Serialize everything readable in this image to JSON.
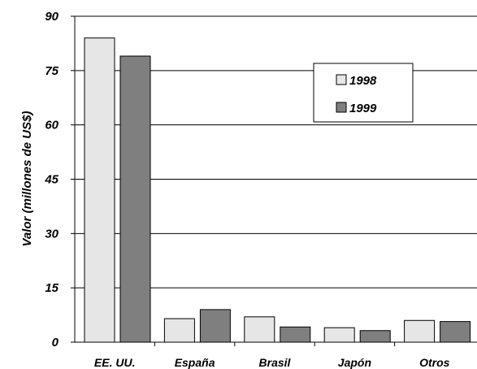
{
  "chart_data": {
    "type": "bar",
    "categories": [
      "EE. UU.",
      "España",
      "Brasil",
      "Japón",
      "Otros"
    ],
    "series": [
      {
        "name": "1998",
        "values": [
          84,
          6.5,
          7,
          4,
          6
        ],
        "color": "#e6e6e6"
      },
      {
        "name": "1999",
        "values": [
          79,
          9,
          4.2,
          3.2,
          5.7
        ],
        "color": "#7f7f7f"
      }
    ],
    "ylabel": "Valor (millones de US$)",
    "xlabel": "",
    "ylim": [
      0,
      90
    ],
    "yticks": [
      "0",
      "15",
      "30",
      "45",
      "60",
      "75",
      "90"
    ],
    "grid": true,
    "legend_position": "top-right"
  }
}
